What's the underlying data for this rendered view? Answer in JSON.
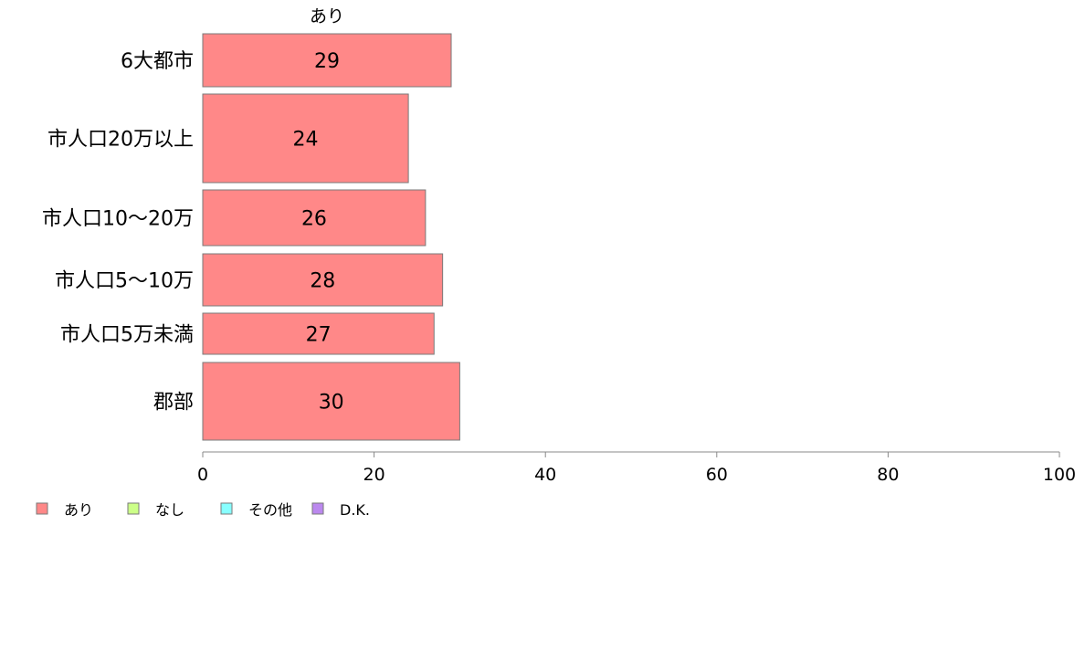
{
  "chart_data": {
    "type": "bar",
    "orientation": "horizontal",
    "stacked": true,
    "categories": [
      "6大都市",
      "市人口20万以上",
      "市人口10〜20万",
      "市人口5〜10万",
      "市人口5万未満",
      "郡部"
    ],
    "series": [
      {
        "name": "あり",
        "color": "#ff8888",
        "values": [
          29,
          24,
          26,
          28,
          27,
          30
        ]
      }
    ],
    "legend": [
      {
        "name": "あり",
        "color": "#ff8888"
      },
      {
        "name": "なし",
        "color": "#ccff88"
      },
      {
        "name": "その他",
        "color": "#88ffff"
      },
      {
        "name": "D.K.",
        "color": "#bb88ee"
      }
    ],
    "xlim": [
      0,
      100
    ],
    "xticks": [
      0,
      20,
      40,
      60,
      80,
      100
    ],
    "legend_position": "bottom-left",
    "grid": false
  }
}
